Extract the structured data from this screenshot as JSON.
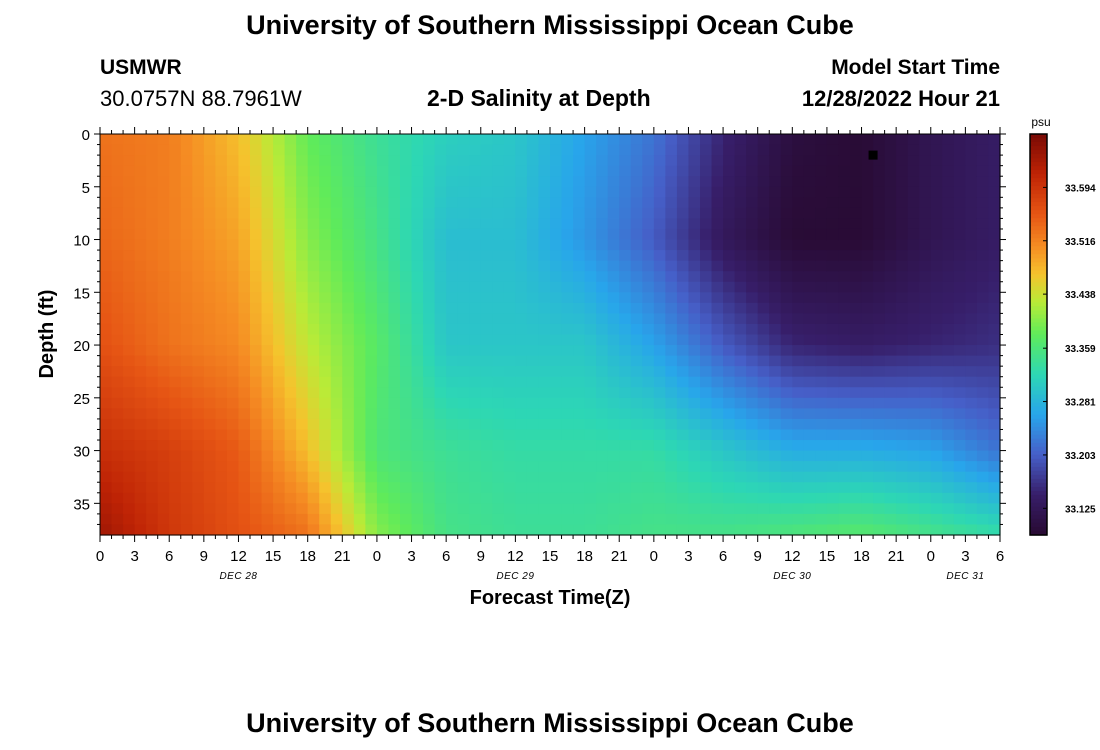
{
  "header": {
    "main_title": "University of Southern Mississippi Ocean Cube",
    "station_name": "USMWR",
    "station_coords": "30.0757N  88.7961W",
    "product_title": "2-D Salinity at Depth",
    "model_start_label": "Model Start Time",
    "model_start_value": "12/28/2022 Hour 21"
  },
  "footer": {
    "title": "University of Southern Mississippi Ocean Cube"
  },
  "chart_data": {
    "type": "heatmap",
    "title": "2-D Salinity at Depth",
    "xlabel": "Forecast Time(Z)",
    "ylabel": "Depth (ft)",
    "x_tick_labels": [
      "0",
      "3",
      "6",
      "9",
      "12",
      "15",
      "18",
      "21",
      "0",
      "3",
      "6",
      "9",
      "12",
      "15",
      "18",
      "21",
      "0",
      "3",
      "6",
      "9",
      "12",
      "15",
      "18",
      "21",
      "0",
      "3",
      "6"
    ],
    "date_labels": [
      {
        "label": "DEC 28",
        "tick_index": 4
      },
      {
        "label": "DEC 29",
        "tick_index": 12
      },
      {
        "label": "DEC 30",
        "tick_index": 20
      },
      {
        "label": "DEC 31",
        "tick_index": 25
      }
    ],
    "y_ticks": [
      0,
      5,
      10,
      15,
      20,
      25,
      30,
      35
    ],
    "ylim": [
      0,
      38
    ],
    "y_inverted": true,
    "colorbar": {
      "unit": "psu",
      "ticks": [
        "33.594",
        "33.516",
        "33.438",
        "33.359",
        "33.281",
        "33.203",
        "33.125"
      ],
      "vmin": 33.086,
      "vmax": 33.672
    },
    "depth_levels": [
      0,
      10,
      20,
      30,
      38
    ],
    "forecast_hours": [
      0,
      6,
      12,
      18,
      24,
      30,
      36,
      42,
      48,
      54,
      60,
      66,
      72,
      78
    ],
    "salinity": [
      [
        33.53,
        33.52,
        33.47,
        33.38,
        33.34,
        33.31,
        33.3,
        33.26,
        33.22,
        33.15,
        33.1,
        33.09,
        33.12,
        33.14
      ],
      [
        33.54,
        33.52,
        33.49,
        33.4,
        33.35,
        33.29,
        33.29,
        33.25,
        33.2,
        33.13,
        33.09,
        33.09,
        33.12,
        33.14
      ],
      [
        33.56,
        33.53,
        33.51,
        33.43,
        33.37,
        33.3,
        33.3,
        33.3,
        33.26,
        33.2,
        33.15,
        33.14,
        33.15,
        33.16
      ],
      [
        33.6,
        33.58,
        33.55,
        33.47,
        33.36,
        33.34,
        33.33,
        33.33,
        33.33,
        33.3,
        33.27,
        33.27,
        33.26,
        33.22
      ],
      [
        33.64,
        33.59,
        33.56,
        33.53,
        33.4,
        33.35,
        33.34,
        33.34,
        33.35,
        33.35,
        33.36,
        33.37,
        33.35,
        33.33
      ]
    ],
    "marker": {
      "forecast_hour": 67,
      "depth": 2,
      "shape": "square",
      "color": "#000000"
    }
  }
}
